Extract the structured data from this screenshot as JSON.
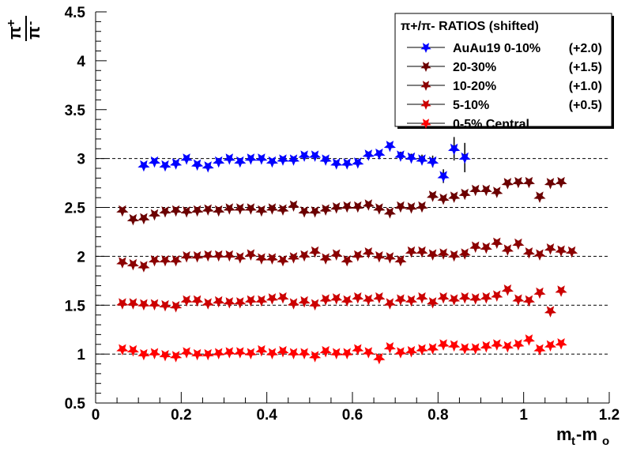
{
  "chart_data": {
    "type": "scatter",
    "title": "",
    "xlabel": "m_t-m_o",
    "xlabel_main": "m",
    "xlabel_sub1": "t",
    "xlabel_mid": "-m",
    "xlabel_sub2": "o",
    "ylabel": "π+/π-",
    "ylabel_num": "π",
    "ylabel_num_sup": "+",
    "ylabel_den": "π",
    "ylabel_den_sup": "-",
    "xlim": [
      0,
      1.2
    ],
    "ylim": [
      0.5,
      4.5
    ],
    "xticks": [
      "0",
      "0.2",
      "0.4",
      "0.6",
      "0.8",
      "1",
      "1.2"
    ],
    "xtick_values": [
      0,
      0.2,
      0.4,
      0.6,
      0.8,
      1.0,
      1.2
    ],
    "yticks": [
      "0.5",
      "1",
      "1.5",
      "2",
      "2.5",
      "3",
      "3.5",
      "4",
      "4.5"
    ],
    "ytick_values": [
      0.5,
      1,
      1.5,
      2,
      2.5,
      3,
      3.5,
      4,
      4.5
    ],
    "reference_lines": [
      1,
      1.5,
      2,
      2.5,
      3
    ],
    "x_start": 0.0625,
    "x_step": 0.025,
    "legend": {
      "title": "π+/π- RATIOS (shifted)",
      "placement": "top-right"
    },
    "series": [
      {
        "name": "AuAu19 0-10%",
        "shift": "(+2.0)",
        "color": "#0000ff",
        "start_index": 2,
        "values": [
          2.93,
          2.97,
          2.93,
          2.95,
          3.0,
          2.94,
          2.92,
          2.97,
          3.0,
          2.97,
          3.0,
          3.0,
          2.97,
          2.99,
          2.99,
          3.03,
          3.03,
          2.99,
          2.95,
          2.95,
          2.96,
          3.04,
          3.05,
          3.13,
          3.03,
          3.01,
          2.99,
          2.97,
          2.82,
          3.1,
          3.01
        ],
        "errors": [
          0,
          0,
          0,
          0,
          0,
          0,
          0,
          0,
          0,
          0,
          0,
          0,
          0,
          0,
          0,
          0,
          0,
          0,
          0,
          0,
          0,
          0.02,
          0.03,
          0.03,
          0.04,
          0.04,
          0.05,
          0.06,
          0.07,
          0.12,
          0.15
        ]
      },
      {
        "name": "20-30%",
        "shift": "(+1.5)",
        "color": "#6b0000",
        "start_index": 0,
        "values": [
          2.47,
          2.38,
          2.39,
          2.43,
          2.46,
          2.47,
          2.46,
          2.47,
          2.48,
          2.47,
          2.49,
          2.49,
          2.49,
          2.47,
          2.49,
          2.48,
          2.52,
          2.46,
          2.46,
          2.48,
          2.5,
          2.51,
          2.51,
          2.53,
          2.49,
          2.45,
          2.51,
          2.5,
          2.51,
          2.62,
          2.59,
          2.61,
          2.64,
          2.68,
          2.68,
          2.66,
          2.75,
          2.76,
          2.76,
          2.61,
          2.75,
          2.76
        ]
      },
      {
        "name": "10-20%",
        "shift": "(+1.0)",
        "color": "#8b0000",
        "start_index": 0,
        "values": [
          1.94,
          1.92,
          1.9,
          1.96,
          1.96,
          1.96,
          2.0,
          2.0,
          2.01,
          2.01,
          2.01,
          1.99,
          2.02,
          1.98,
          1.98,
          1.96,
          1.99,
          2.01,
          2.05,
          1.98,
          2.02,
          1.96,
          2.01,
          2.04,
          2.0,
          1.99,
          1.96,
          2.05,
          2.05,
          2.02,
          2.03,
          2.01,
          2.03,
          2.1,
          2.09,
          2.14,
          2.07,
          2.13,
          2.04,
          2.02,
          2.08,
          2.06,
          2.05
        ]
      },
      {
        "name": "5-10%",
        "shift": "(+0.5)",
        "color": "#cc0000",
        "start_index": 0,
        "values": [
          1.52,
          1.52,
          1.51,
          1.51,
          1.5,
          1.49,
          1.55,
          1.55,
          1.52,
          1.54,
          1.53,
          1.53,
          1.55,
          1.55,
          1.57,
          1.58,
          1.52,
          1.54,
          1.51,
          1.56,
          1.57,
          1.55,
          1.58,
          1.56,
          1.58,
          1.52,
          1.56,
          1.55,
          1.58,
          1.53,
          1.58,
          1.56,
          1.58,
          1.57,
          1.58,
          1.6,
          1.66,
          1.56,
          1.55,
          1.63,
          1.44,
          1.65
        ]
      },
      {
        "name": "0-5% Central",
        "shift": "",
        "color": "#ff0000",
        "start_index": 0,
        "values": [
          1.05,
          1.04,
          1.0,
          1.01,
          0.99,
          0.98,
          1.02,
          1.0,
          1.0,
          1.01,
          1.02,
          1.02,
          1.01,
          1.04,
          1.01,
          1.03,
          1.01,
          1.01,
          0.98,
          1.03,
          1.01,
          1.01,
          1.05,
          1.02,
          0.96,
          1.07,
          1.02,
          1.03,
          1.05,
          1.06,
          1.1,
          1.09,
          1.06,
          1.06,
          1.08,
          1.1,
          1.08,
          1.1,
          1.15,
          1.05,
          1.09,
          1.11
        ]
      }
    ]
  }
}
